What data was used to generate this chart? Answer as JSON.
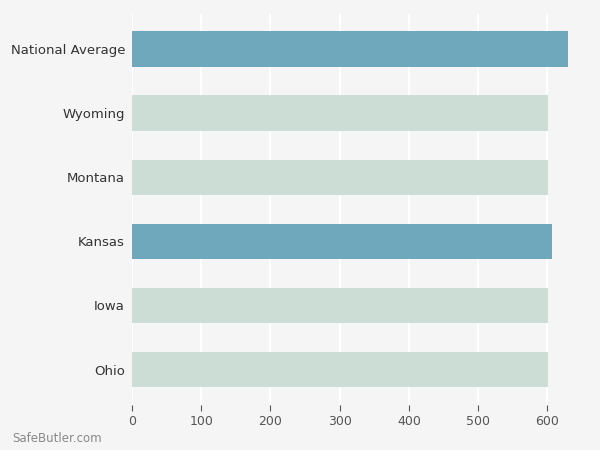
{
  "categories": [
    "Ohio",
    "Iowa",
    "Kansas",
    "Montana",
    "Wyoming",
    "National Average"
  ],
  "values": [
    601,
    601,
    607,
    601,
    601,
    630
  ],
  "bar_colors": [
    "#ccddd6",
    "#ccddd6",
    "#6fa8bc",
    "#ccddd6",
    "#ccddd6",
    "#6fa8bc"
  ],
  "background_color": "#f5f5f5",
  "plot_bg_color": "#f5f5f5",
  "grid_color": "#ffffff",
  "tick_color": "#555555",
  "label_color": "#333333",
  "xlim": [
    0,
    650
  ],
  "xticks": [
    0,
    100,
    200,
    300,
    400,
    500,
    600
  ],
  "watermark": "SafeButler.com",
  "bar_height": 0.55,
  "figsize": [
    6.0,
    4.5
  ],
  "dpi": 100
}
